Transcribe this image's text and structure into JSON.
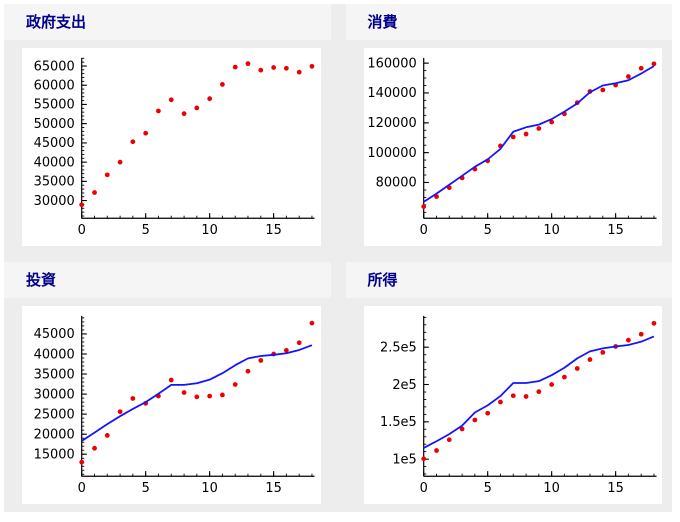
{
  "page": {
    "layout": "2x2 subplot grid",
    "colors": {
      "page_bg": "#ffffff",
      "board_bg": "#ededed",
      "title_strip_bg": "#f5f5f5",
      "title_text": "#00008b",
      "plot_bg": "#ffffff",
      "axis": "#000000",
      "point": "#ee0000",
      "line": "#1414ff"
    }
  },
  "chart_data": [
    {
      "type": "scatter",
      "title": "政府支出",
      "x": [
        0,
        1,
        2,
        3,
        4,
        5,
        6,
        7,
        8,
        9,
        10,
        11,
        12,
        13,
        14,
        15,
        16,
        17,
        18
      ],
      "series": [
        {
          "name": "points",
          "marker": "point",
          "color": "#ee0000",
          "values": [
            28900,
            32100,
            36700,
            40000,
            45300,
            47500,
            53300,
            56200,
            52600,
            54100,
            56500,
            60200,
            64700,
            65600,
            63900,
            64600,
            64400,
            63400,
            64900
          ]
        }
      ],
      "xlim": [
        0,
        18.2
      ],
      "ylim": [
        25400,
        67100
      ],
      "xticks": {
        "major": [
          0,
          5,
          10,
          15
        ],
        "labels": [
          "0",
          "5",
          "10",
          "15"
        ],
        "minor_step": 1
      },
      "yticks": {
        "major": [
          30000,
          35000,
          40000,
          45000,
          50000,
          55000,
          60000,
          65000
        ],
        "labels": [
          "30000",
          "35000",
          "40000",
          "45000",
          "50000",
          "55000",
          "60000",
          "65000"
        ],
        "minor_step": 1000
      },
      "grid": false,
      "legend": "none"
    },
    {
      "type": "scatter+line",
      "title": "消費",
      "x": [
        0,
        1,
        2,
        3,
        4,
        5,
        6,
        7,
        8,
        9,
        10,
        11,
        12,
        13,
        14,
        15,
        16,
        17,
        18
      ],
      "series": [
        {
          "name": "points",
          "marker": "point",
          "color": "#ee0000",
          "values": [
            63800,
            70500,
            76500,
            83000,
            89000,
            94500,
            104500,
            110500,
            112500,
            116200,
            120500,
            126000,
            133500,
            141000,
            142000,
            145300,
            151000,
            156500,
            159500
          ]
        },
        {
          "name": "line",
          "marker": "line",
          "color": "#1414ff",
          "values": [
            67000,
            72500,
            78500,
            84500,
            90500,
            95500,
            102500,
            114000,
            117000,
            118800,
            122500,
            127500,
            133000,
            140500,
            145000,
            146500,
            148500,
            153000,
            158000
          ]
        }
      ],
      "xlim": [
        0,
        18.2
      ],
      "ylim": [
        56000,
        163500
      ],
      "xticks": {
        "major": [
          0,
          5,
          10,
          15
        ],
        "labels": [
          "0",
          "5",
          "10",
          "15"
        ],
        "minor_step": 1
      },
      "yticks": {
        "major": [
          80000,
          100000,
          120000,
          140000,
          160000
        ],
        "labels": [
          "80000",
          "100000",
          "120000",
          "140000",
          "160000"
        ],
        "minor_step": 5000
      },
      "grid": false,
      "legend": "none"
    },
    {
      "type": "scatter+line",
      "title": "投資",
      "x": [
        0,
        1,
        2,
        3,
        4,
        5,
        6,
        7,
        8,
        9,
        10,
        11,
        12,
        13,
        14,
        15,
        16,
        17,
        18
      ],
      "series": [
        {
          "name": "points",
          "marker": "point",
          "color": "#ee0000",
          "values": [
            13000,
            16500,
            19700,
            25600,
            28900,
            27700,
            29500,
            33500,
            30400,
            29300,
            29500,
            29800,
            32400,
            35700,
            38400,
            40000,
            40900,
            42800,
            47700
          ]
        },
        {
          "name": "line",
          "marker": "line",
          "color": "#1414ff",
          "values": [
            18300,
            20400,
            22500,
            24500,
            26300,
            28000,
            30100,
            32300,
            32300,
            32700,
            33600,
            35200,
            37200,
            38900,
            39500,
            39800,
            40200,
            41000,
            42200
          ]
        }
      ],
      "xlim": [
        0,
        18.2
      ],
      "ylim": [
        9500,
        49500
      ],
      "xticks": {
        "major": [
          0,
          5,
          10,
          15
        ],
        "labels": [
          "0",
          "5",
          "10",
          "15"
        ],
        "minor_step": 1
      },
      "yticks": {
        "major": [
          15000,
          20000,
          25000,
          30000,
          35000,
          40000,
          45000
        ],
        "labels": [
          "15000",
          "20000",
          "25000",
          "30000",
          "35000",
          "40000",
          "45000"
        ],
        "minor_step": 1000
      },
      "grid": false,
      "legend": "none"
    },
    {
      "type": "scatter+line",
      "title": "所得",
      "x": [
        0,
        1,
        2,
        3,
        4,
        5,
        6,
        7,
        8,
        9,
        10,
        11,
        12,
        13,
        14,
        15,
        16,
        17,
        18
      ],
      "series": [
        {
          "name": "points",
          "marker": "point",
          "color": "#ee0000",
          "values": [
            100500,
            111500,
            126000,
            140500,
            152500,
            161500,
            176500,
            185000,
            184000,
            190500,
            200000,
            210000,
            221500,
            233500,
            243000,
            251000,
            259500,
            267500,
            282000
          ]
        },
        {
          "name": "line",
          "marker": "line",
          "color": "#1414ff",
          "values": [
            115000,
            124000,
            133500,
            145000,
            162500,
            172000,
            184500,
            202000,
            202000,
            204500,
            212500,
            222500,
            235000,
            244500,
            248500,
            251000,
            253000,
            257500,
            264500
          ]
        }
      ],
      "xlim": [
        0,
        18.2
      ],
      "ylim": [
        77000,
        292000
      ],
      "xticks": {
        "major": [
          0,
          5,
          10,
          15
        ],
        "labels": [
          "0",
          "5",
          "10",
          "15"
        ],
        "minor_step": 1
      },
      "yticks": {
        "major": [
          100000,
          150000,
          200000,
          250000
        ],
        "labels": [
          "1e5",
          "1.5e5",
          "2e5",
          "2.5e5"
        ],
        "minor_step": 10000
      },
      "grid": false,
      "legend": "none"
    }
  ]
}
